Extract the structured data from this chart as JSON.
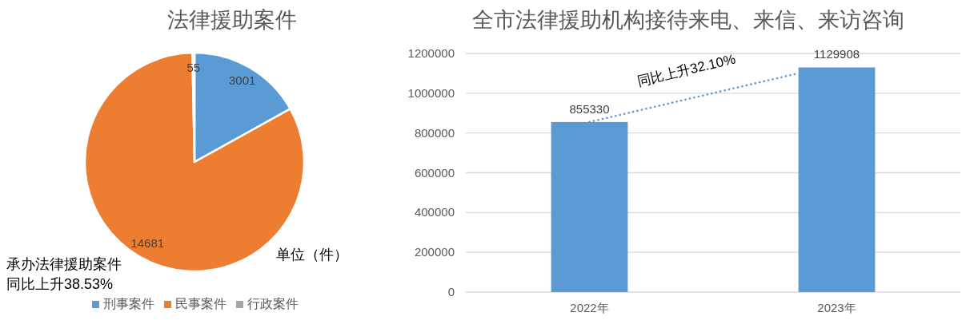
{
  "chart_data": [
    {
      "type": "pie",
      "title": "法律援助案件",
      "categories": [
        "刑事案件",
        "民事案件",
        "行政案件"
      ],
      "values": [
        3001,
        14681,
        55
      ],
      "colors": [
        "#5b9bd5",
        "#ed7d31",
        "#a5a5a5"
      ],
      "data_labels": true,
      "legend": "bottom",
      "annotations": [
        "单位（件）",
        "承办法律援助案件",
        "同比上升38.53%"
      ]
    },
    {
      "type": "bar",
      "title": "全市法律援助机构接待来电、来信、来访咨询",
      "categories": [
        "2022年",
        "2023年"
      ],
      "values": [
        855330,
        1129908
      ],
      "color": "#5b9bd5",
      "data_labels": true,
      "ylim": [
        0,
        1200000
      ],
      "yticks": [
        0,
        200000,
        400000,
        600000,
        800000,
        1000000,
        1200000
      ],
      "grid": "y",
      "annotations": [
        "同比上升32.10%"
      ]
    }
  ]
}
